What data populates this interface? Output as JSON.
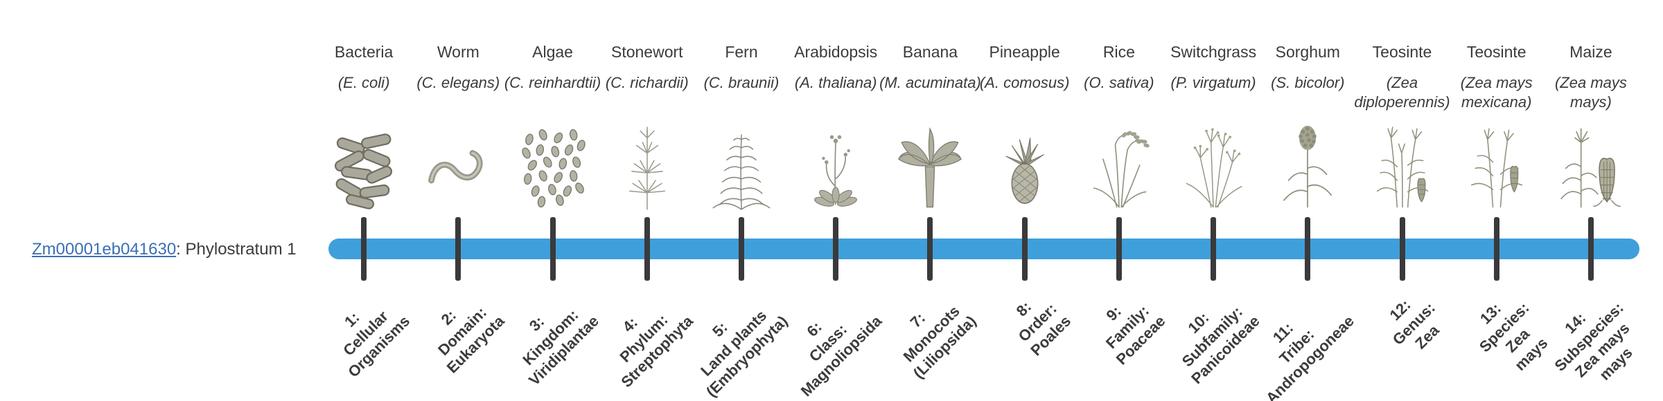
{
  "gene": {
    "id": "Zm00001eb041630",
    "suffix": ": Phylostratum 1"
  },
  "colors": {
    "bar": "#3f9fda",
    "tick": "#3a3a3a",
    "link": "#3a6fb7",
    "text": "#3b3b3b"
  },
  "columns": [
    {
      "name": "Bacteria",
      "sci": "(E. coli)",
      "icon": "bacteria-icon",
      "stratum": "1:\nCellular\nOrganisms"
    },
    {
      "name": "Worm",
      "sci": "(C. elegans)",
      "icon": "worm-icon",
      "stratum": "2:\nDomain:\nEukaryota"
    },
    {
      "name": "Algae",
      "sci": "(C. reinhardtii)",
      "icon": "algae-icon",
      "stratum": "3:\nKingdom:\nViridiplantae"
    },
    {
      "name": "Stonewort",
      "sci": "(C. richardii)",
      "icon": "stonewort-icon",
      "stratum": "4:\nPhylum:\nStreptophyta"
    },
    {
      "name": "Fern",
      "sci": "(C. braunii)",
      "icon": "fern-icon",
      "stratum": "5:\nLand plants\n(Embryophyta)"
    },
    {
      "name": "Arabidopsis",
      "sci": "(A. thaliana)",
      "icon": "arabidopsis-icon",
      "stratum": "6:\nClass:\nMagnoliopsida"
    },
    {
      "name": "Banana",
      "sci": "(M. acuminata)",
      "icon": "banana-icon",
      "stratum": "7:\nMonocots\n(Liliopsida)"
    },
    {
      "name": "Pineapple",
      "sci": "(A. comosus)",
      "icon": "pineapple-icon",
      "stratum": "8:\nOrder:\nPoales"
    },
    {
      "name": "Rice",
      "sci": "(O. sativa)",
      "icon": "rice-icon",
      "stratum": "9:\nFamily:\nPoaceae"
    },
    {
      "name": "Switchgrass",
      "sci": "(P. virgatum)",
      "icon": "switchgrass-icon",
      "stratum": "10:\nSubfamily:\nPanicoideae"
    },
    {
      "name": "Sorghum",
      "sci": "(S. bicolor)",
      "icon": "sorghum-icon",
      "stratum": "11:\nTribe:\nAndropogoneae"
    },
    {
      "name": "Teosinte",
      "sci": "(Zea diploperennis)",
      "icon": "teosinte-a-icon",
      "stratum": "12:\nGenus:\nZea"
    },
    {
      "name": "Teosinte",
      "sci": "(Zea mays mexicana)",
      "icon": "teosinte-b-icon",
      "stratum": "13:\nSpecies:\nZea\nmays"
    },
    {
      "name": "Maize",
      "sci": "(Zea mays mays)",
      "icon": "maize-icon",
      "stratum": "14:\nSubspecies:\nZea mays\nmays"
    }
  ]
}
